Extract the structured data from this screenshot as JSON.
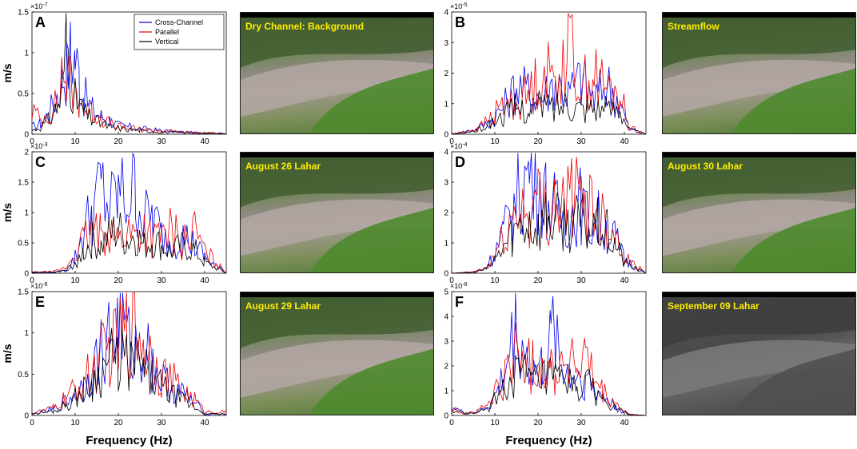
{
  "ylabel": "m/s",
  "xlabel": "Frequency (Hz)",
  "legend": [
    "Cross-Channel",
    "Parallel",
    "Vertical"
  ],
  "colors": {
    "cross": "#0000ee",
    "parallel": "#ee0000",
    "vertical": "#000000",
    "label": "#ffee00"
  },
  "photos": [
    {
      "id": "p1",
      "label": "Dry Channel: Background",
      "tone": "color"
    },
    {
      "id": "p2",
      "label": "Streamflow",
      "tone": "color"
    },
    {
      "id": "p3",
      "label": "August 26 Lahar",
      "tone": "color"
    },
    {
      "id": "p4",
      "label": "August 30 Lahar",
      "tone": "color"
    },
    {
      "id": "p5",
      "label": "August 29 Lahar",
      "tone": "color"
    },
    {
      "id": "p6",
      "label": "September 09 Lahar",
      "tone": "gray"
    }
  ],
  "chart_data": [
    {
      "type": "line",
      "panel": "A",
      "exponent": "×10-7",
      "xlim": [
        0,
        45
      ],
      "ylim": [
        0,
        1.5
      ],
      "xticks": [
        0,
        10,
        20,
        30,
        40
      ],
      "yticks": [
        0,
        0.5,
        1,
        1.5
      ],
      "yticklabels": [
        "0",
        "0.5",
        "1",
        "1.5"
      ],
      "series": [
        {
          "name": "Cross-Channel",
          "x": [
            0,
            2,
            4,
            6,
            7,
            8,
            9,
            10,
            11,
            12,
            14,
            16,
            18,
            20,
            25,
            30,
            35,
            40,
            45
          ],
          "y": [
            0.1,
            0.15,
            0.3,
            0.6,
            0.85,
            0.9,
            1.15,
            1.1,
            0.8,
            0.55,
            0.35,
            0.25,
            0.2,
            0.12,
            0.08,
            0.05,
            0.03,
            0.02,
            0.01
          ]
        },
        {
          "name": "Parallel",
          "x": [
            0,
            2,
            4,
            6,
            7,
            8,
            9,
            10,
            11,
            12,
            14,
            16,
            18,
            20,
            25,
            30,
            35,
            40,
            45
          ],
          "y": [
            0.35,
            0.2,
            0.3,
            0.45,
            0.9,
            0.8,
            0.7,
            0.6,
            0.5,
            0.35,
            0.3,
            0.25,
            0.15,
            0.1,
            0.07,
            0.05,
            0.03,
            0.02,
            0.01
          ]
        },
        {
          "name": "Vertical",
          "x": [
            0,
            2,
            4,
            6,
            7,
            8,
            9,
            10,
            11,
            12,
            14,
            16,
            18,
            20,
            25,
            30,
            35,
            40,
            45
          ],
          "y": [
            0.05,
            0.1,
            0.2,
            0.4,
            0.6,
            1.4,
            0.8,
            0.5,
            0.4,
            0.3,
            0.2,
            0.15,
            0.1,
            0.08,
            0.05,
            0.03,
            0.02,
            0.01,
            0.01
          ]
        }
      ]
    },
    {
      "type": "line",
      "panel": "B",
      "exponent": "×10-5",
      "xlim": [
        0,
        45
      ],
      "ylim": [
        0,
        4
      ],
      "xticks": [
        0,
        10,
        20,
        30,
        40
      ],
      "yticks": [
        0,
        1,
        2,
        3,
        4
      ],
      "yticklabels": [
        "0",
        "1",
        "2",
        "3",
        "4"
      ],
      "series": [
        {
          "name": "Cross-Channel",
          "x": [
            0,
            3,
            6,
            9,
            12,
            15,
            18,
            21,
            24,
            27,
            30,
            33,
            36,
            39,
            41,
            45
          ],
          "y": [
            0,
            0.1,
            0.2,
            0.5,
            1.0,
            1.8,
            1.6,
            1.4,
            2.0,
            1.5,
            2.1,
            1.3,
            1.9,
            1.2,
            0.2,
            0
          ]
        },
        {
          "name": "Parallel",
          "x": [
            0,
            3,
            6,
            9,
            12,
            15,
            18,
            21,
            24,
            27,
            30,
            33,
            36,
            39,
            41,
            45
          ],
          "y": [
            0,
            0.1,
            0.2,
            0.6,
            1.1,
            1.2,
            1.5,
            2.4,
            2.0,
            3.5,
            1.8,
            2.2,
            1.6,
            1.5,
            0.3,
            0
          ]
        },
        {
          "name": "Vertical",
          "x": [
            0,
            3,
            6,
            9,
            12,
            15,
            18,
            21,
            24,
            27,
            30,
            33,
            36,
            39,
            41,
            45
          ],
          "y": [
            0,
            0.05,
            0.15,
            0.4,
            0.7,
            1.0,
            0.9,
            1.1,
            1.0,
            1.3,
            1.0,
            1.1,
            0.9,
            1.1,
            0.2,
            0
          ]
        }
      ]
    },
    {
      "type": "line",
      "panel": "C",
      "exponent": "×10-3",
      "xlim": [
        0,
        45
      ],
      "ylim": [
        0,
        2
      ],
      "xticks": [
        0,
        10,
        20,
        30,
        40
      ],
      "yticks": [
        0,
        0.5,
        1,
        1.5,
        2
      ],
      "yticklabels": [
        "0",
        "0.5",
        "1",
        "1.5",
        "2"
      ],
      "series": [
        {
          "name": "Cross-Channel",
          "x": [
            0,
            5,
            8,
            10,
            12,
            14,
            16,
            18,
            20,
            22,
            24,
            26,
            28,
            30,
            32,
            35,
            38,
            40,
            45
          ],
          "y": [
            0.02,
            0.02,
            0.05,
            0.3,
            0.8,
            1.2,
            1.6,
            1.2,
            1.5,
            1.4,
            1.6,
            1.0,
            1.1,
            0.7,
            0.6,
            0.7,
            0.5,
            0.3,
            0
          ]
        },
        {
          "name": "Parallel",
          "x": [
            0,
            5,
            8,
            10,
            12,
            14,
            16,
            18,
            20,
            22,
            24,
            26,
            28,
            30,
            32,
            35,
            38,
            40,
            45
          ],
          "y": [
            0.02,
            0.03,
            0.1,
            0.4,
            0.6,
            0.8,
            0.7,
            0.9,
            0.6,
            0.8,
            0.7,
            0.9,
            0.6,
            0.7,
            0.8,
            0.6,
            0.8,
            0.4,
            0
          ]
        },
        {
          "name": "Vertical",
          "x": [
            0,
            5,
            8,
            10,
            12,
            14,
            16,
            18,
            20,
            22,
            24,
            26,
            28,
            30,
            32,
            35,
            38,
            40,
            45
          ],
          "y": [
            0.01,
            0.02,
            0.05,
            0.2,
            0.4,
            0.6,
            0.5,
            0.7,
            0.8,
            0.6,
            0.7,
            0.5,
            0.6,
            0.5,
            0.4,
            0.5,
            0.4,
            0.2,
            0
          ]
        }
      ]
    },
    {
      "type": "line",
      "panel": "D",
      "exponent": "×10-4",
      "xlim": [
        0,
        45
      ],
      "ylim": [
        0,
        4
      ],
      "xticks": [
        0,
        10,
        20,
        30,
        40
      ],
      "yticks": [
        0,
        1,
        2,
        3,
        4
      ],
      "yticklabels": [
        "0",
        "1",
        "2",
        "3",
        "4"
      ],
      "series": [
        {
          "name": "Cross-Channel",
          "x": [
            0,
            5,
            8,
            10,
            12,
            14,
            16,
            18,
            20,
            22,
            24,
            26,
            28,
            30,
            32,
            34,
            36,
            38,
            40,
            45
          ],
          "y": [
            0,
            0.05,
            0.2,
            0.8,
            1.5,
            2.3,
            3.2,
            3.8,
            3.5,
            2.8,
            2.4,
            2.0,
            2.3,
            2.6,
            1.8,
            2.0,
            1.6,
            1.3,
            0.5,
            0
          ]
        },
        {
          "name": "Parallel",
          "x": [
            0,
            5,
            8,
            10,
            12,
            14,
            16,
            18,
            20,
            22,
            24,
            26,
            28,
            30,
            32,
            34,
            36,
            38,
            40,
            45
          ],
          "y": [
            0,
            0.05,
            0.2,
            0.7,
            1.3,
            2.0,
            2.5,
            2.2,
            2.7,
            2.4,
            2.8,
            2.6,
            3.0,
            2.5,
            2.8,
            2.2,
            2.0,
            1.5,
            0.6,
            0
          ]
        },
        {
          "name": "Vertical",
          "x": [
            0,
            5,
            8,
            10,
            12,
            14,
            16,
            18,
            20,
            22,
            24,
            26,
            28,
            30,
            32,
            34,
            36,
            38,
            40,
            45
          ],
          "y": [
            0,
            0.03,
            0.15,
            0.5,
            1.0,
            1.5,
            1.8,
            2.0,
            1.7,
            2.2,
            1.9,
            2.0,
            1.8,
            2.0,
            1.7,
            1.8,
            1.5,
            1.1,
            0.4,
            0
          ]
        }
      ]
    },
    {
      "type": "line",
      "panel": "E",
      "exponent": "×10-6",
      "xlim": [
        0,
        45
      ],
      "ylim": [
        0,
        1.5
      ],
      "xticks": [
        0,
        10,
        20,
        30,
        40
      ],
      "yticks": [
        0,
        0.5,
        1,
        1.5
      ],
      "yticklabels": [
        "0",
        "0.5",
        "1",
        "1.5"
      ],
      "series": [
        {
          "name": "Cross-Channel",
          "x": [
            0,
            5,
            8,
            10,
            12,
            14,
            16,
            18,
            20,
            21,
            22,
            24,
            26,
            28,
            30,
            32,
            35,
            38,
            40,
            45
          ],
          "y": [
            0.02,
            0.08,
            0.2,
            0.3,
            0.4,
            0.6,
            0.9,
            1.1,
            1.2,
            1.5,
            1.0,
            0.9,
            1.0,
            0.7,
            0.5,
            0.4,
            0.3,
            0.15,
            0.02,
            0.02
          ]
        },
        {
          "name": "Parallel",
          "x": [
            0,
            5,
            8,
            10,
            12,
            14,
            16,
            18,
            20,
            21,
            22,
            24,
            26,
            28,
            30,
            32,
            35,
            38,
            40,
            45
          ],
          "y": [
            0.03,
            0.1,
            0.25,
            0.35,
            0.5,
            0.6,
            0.8,
            0.9,
            1.0,
            1.1,
            1.2,
            1.3,
            1.0,
            0.8,
            0.6,
            0.5,
            0.35,
            0.2,
            0.05,
            0.05
          ]
        },
        {
          "name": "Vertical",
          "x": [
            0,
            5,
            8,
            10,
            12,
            14,
            16,
            18,
            20,
            21,
            22,
            24,
            26,
            28,
            30,
            32,
            35,
            38,
            40,
            45
          ],
          "y": [
            0.02,
            0.06,
            0.15,
            0.25,
            0.35,
            0.45,
            0.6,
            0.8,
            0.7,
            0.9,
            0.7,
            0.75,
            0.6,
            0.5,
            0.4,
            0.3,
            0.2,
            0.1,
            0.02,
            0.02
          ]
        }
      ]
    },
    {
      "type": "line",
      "panel": "F",
      "exponent": "×10-6",
      "xlim": [
        0,
        45
      ],
      "ylim": [
        0,
        5
      ],
      "xticks": [
        0,
        10,
        20,
        30,
        40
      ],
      "yticks": [
        0,
        1,
        2,
        3,
        4,
        5
      ],
      "yticklabels": [
        "0",
        "1",
        "2",
        "3",
        "4",
        "5"
      ],
      "series": [
        {
          "name": "Cross-Channel",
          "x": [
            0,
            3,
            6,
            9,
            11,
            13,
            15,
            17,
            19,
            21,
            23,
            24,
            25,
            27,
            29,
            31,
            33,
            35,
            38,
            41,
            45
          ],
          "y": [
            0.4,
            0.1,
            0.15,
            0.5,
            1.2,
            2.5,
            4.2,
            2.8,
            2.0,
            2.2,
            3.2,
            4.7,
            2.5,
            2.0,
            1.8,
            1.7,
            1.2,
            0.9,
            0.4,
            0.05,
            0
          ]
        },
        {
          "name": "Parallel",
          "x": [
            0,
            3,
            6,
            9,
            11,
            13,
            15,
            17,
            19,
            21,
            23,
            24,
            25,
            27,
            29,
            31,
            33,
            35,
            38,
            41,
            45
          ],
          "y": [
            0.3,
            0.1,
            0.2,
            0.6,
            1.4,
            2.0,
            3.1,
            2.4,
            2.2,
            2.5,
            2.2,
            2.0,
            2.4,
            2.6,
            2.2,
            2.6,
            1.5,
            1.0,
            0.5,
            0.05,
            0
          ]
        },
        {
          "name": "Vertical",
          "x": [
            0,
            3,
            6,
            9,
            11,
            13,
            15,
            17,
            19,
            21,
            23,
            24,
            25,
            27,
            29,
            31,
            33,
            35,
            38,
            41,
            45
          ],
          "y": [
            0.2,
            0.1,
            0.1,
            0.4,
            1.0,
            1.5,
            2.0,
            1.8,
            1.5,
            1.6,
            1.7,
            1.6,
            1.5,
            1.4,
            1.3,
            1.5,
            1.1,
            0.7,
            0.3,
            0.05,
            0
          ]
        }
      ]
    }
  ]
}
